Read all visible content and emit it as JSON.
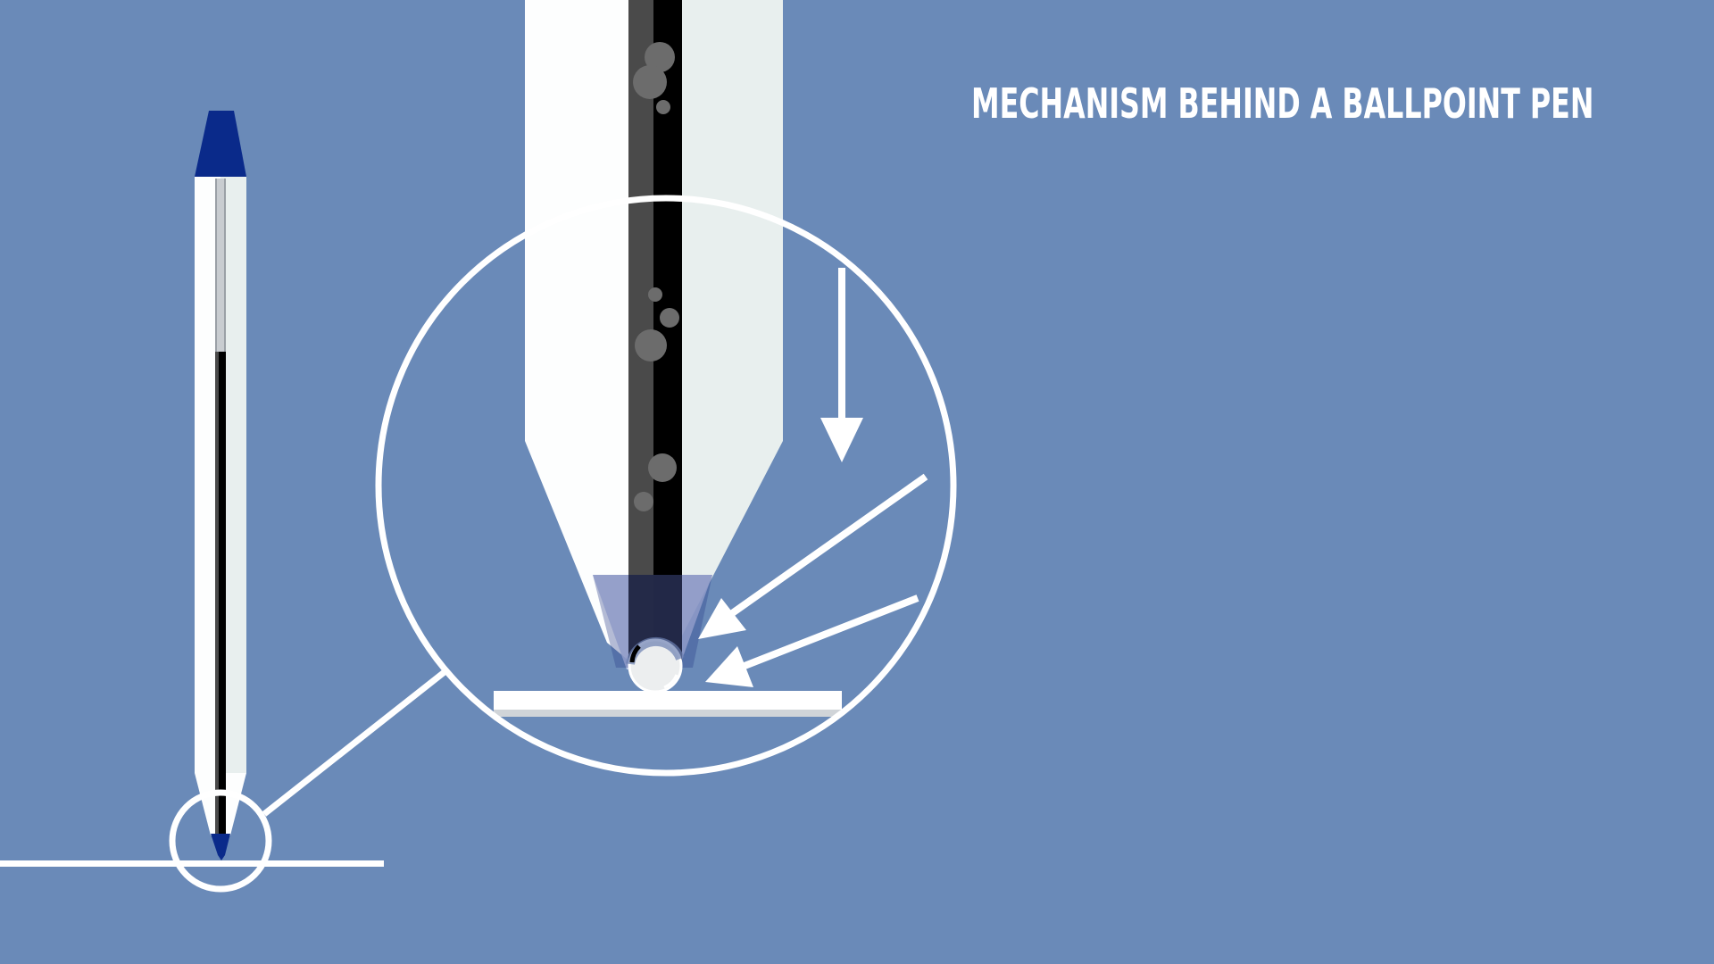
{
  "title": "MECHANISM BEHIND A BALLPOINT PEN",
  "colors": {
    "background": "#6a8ab8",
    "outline": "#ffffff",
    "pen_body": "#fdfefe",
    "pen_body_shade": "#e8efee",
    "ink": "#000000",
    "ink_dark": "#4a4a4a",
    "cap": "#0a2a8a",
    "bubble": "#6c6c6c",
    "paper_shadow": "#d0d4d8"
  },
  "icons": {
    "small_pen": "ballpoint-pen-icon",
    "ball": "ball-bearing-icon",
    "arrows": "arrow-icon"
  }
}
